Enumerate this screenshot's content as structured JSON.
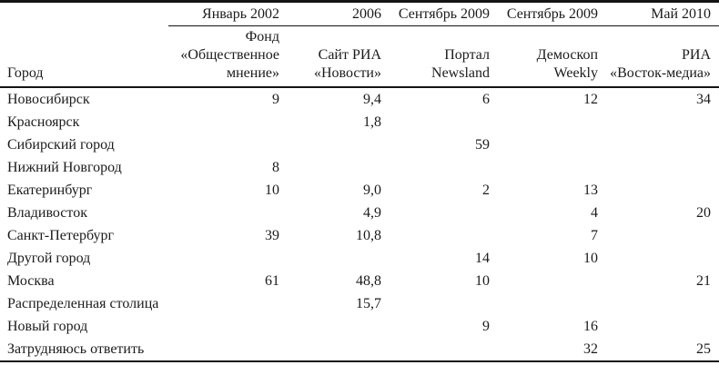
{
  "page": {
    "background": "#ffffff",
    "text_color": "#1b1b1b",
    "rule_color": "#141414"
  },
  "table": {
    "corner_label": "Город",
    "columns": [
      {
        "period": "Январь 2002",
        "source_lines": [
          "Фонд",
          "«Общественное",
          "мнение»"
        ]
      },
      {
        "period": "2006",
        "source_lines": [
          "Сайт РИА",
          "«Новости»"
        ]
      },
      {
        "period": "Сентябрь 2009",
        "source_lines": [
          "Портал",
          "Newsland"
        ]
      },
      {
        "period": "Сентябрь 2009",
        "source_lines": [
          "Демоскоп",
          "Weekly"
        ]
      },
      {
        "period": "Май 2010",
        "source_lines": [
          "РИА",
          "«Восток-медиа»"
        ]
      }
    ],
    "rows": [
      {
        "city": "Новосибирск",
        "values": [
          "9",
          "9,4",
          "6",
          "12",
          "34"
        ]
      },
      {
        "city": "Красноярск",
        "values": [
          "",
          "1,8",
          "",
          "",
          ""
        ]
      },
      {
        "city": "Сибирский город",
        "values": [
          "",
          "",
          "59",
          "",
          ""
        ]
      },
      {
        "city": "Нижний Новгород",
        "values": [
          "8",
          "",
          "",
          "",
          ""
        ]
      },
      {
        "city": "Екатеринбург",
        "values": [
          "10",
          "9,0",
          "2",
          "13",
          ""
        ]
      },
      {
        "city": "Владивосток",
        "values": [
          "",
          "4,9",
          "",
          "4",
          "20"
        ]
      },
      {
        "city": "Санкт-Петербург",
        "values": [
          "39",
          "10,8",
          "",
          "7",
          ""
        ]
      },
      {
        "city": "Другой город",
        "values": [
          "",
          "",
          "14",
          "10",
          ""
        ]
      },
      {
        "city": "Москва",
        "values": [
          "61",
          "48,8",
          "10",
          "",
          "21"
        ]
      },
      {
        "city": "Распределенная столица",
        "values": [
          "",
          "15,7",
          "",
          "",
          ""
        ]
      },
      {
        "city": "Новый город",
        "values": [
          "",
          "",
          "9",
          "16",
          ""
        ]
      },
      {
        "city": "Затрудняюсь ответить",
        "values": [
          "",
          "",
          "",
          "32",
          "25"
        ]
      }
    ]
  }
}
